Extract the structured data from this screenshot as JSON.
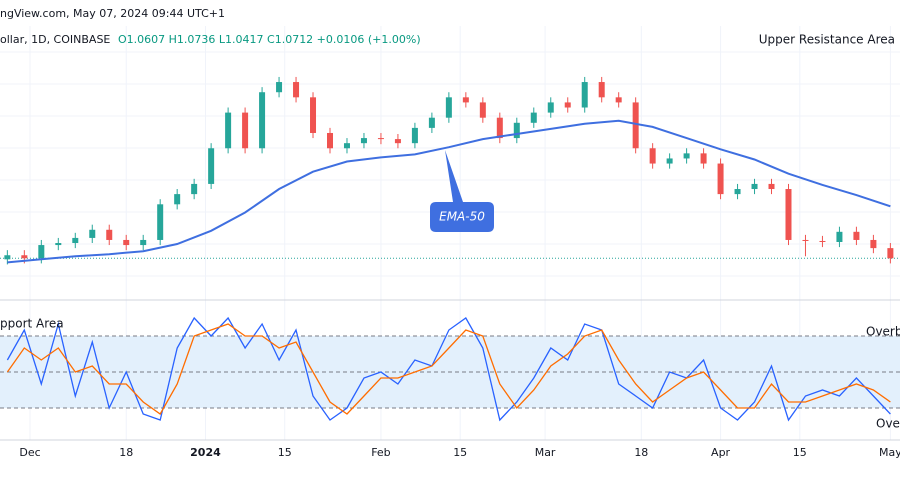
{
  "header": {
    "source": "ngView.com, May 07, 2024 09:44 UTC+1",
    "symbol": "ollar, 1D, COINBASE",
    "ohlc": "O1.0607 H1.0736 L1.0417 C1.0712 +0.0106 (+1.00%)"
  },
  "chart_data": [
    {
      "type": "candlestick",
      "x": [
        -4,
        -1,
        2,
        5,
        8,
        11,
        14,
        17,
        20,
        23,
        26,
        29,
        32,
        35,
        38,
        41,
        44,
        47,
        50,
        53,
        56,
        59,
        62,
        65,
        68,
        71,
        74,
        77,
        80,
        83,
        86,
        89,
        92,
        95,
        98,
        101,
        104,
        107,
        110,
        113,
        116,
        119,
        122,
        125,
        128,
        131,
        134,
        137,
        140,
        143,
        146,
        149,
        152
      ],
      "open": [
        1.0707,
        1.0727,
        1.0712,
        1.0777,
        1.0787,
        1.0812,
        1.0852,
        1.0802,
        1.0777,
        1.0802,
        1.0977,
        1.1027,
        1.1077,
        1.1252,
        1.1427,
        1.1252,
        1.1527,
        1.1577,
        1.1502,
        1.1327,
        1.1252,
        1.1277,
        1.1302,
        1.1297,
        1.1277,
        1.1352,
        1.1402,
        1.1502,
        1.1477,
        1.1402,
        1.1302,
        1.1377,
        1.1427,
        1.1477,
        1.1452,
        1.1577,
        1.1502,
        1.1477,
        1.1252,
        1.1177,
        1.1202,
        1.1227,
        1.1177,
        1.1027,
        1.1052,
        1.1077,
        1.1052,
        1.0802,
        1.0797,
        1.0792,
        1.0842,
        1.0802,
        1.0762
      ],
      "high": [
        1.0752,
        1.0752,
        1.0802,
        1.0812,
        1.0837,
        1.0877,
        1.0877,
        1.0827,
        1.0827,
        1.1002,
        1.1052,
        1.1102,
        1.1277,
        1.1452,
        1.1452,
        1.1552,
        1.1602,
        1.1602,
        1.1527,
        1.1352,
        1.1302,
        1.1327,
        1.1327,
        1.1322,
        1.1377,
        1.1427,
        1.1527,
        1.1527,
        1.1502,
        1.1427,
        1.1402,
        1.1452,
        1.1502,
        1.1502,
        1.1602,
        1.1602,
        1.1527,
        1.1502,
        1.1277,
        1.1227,
        1.1252,
        1.1252,
        1.1202,
        1.1077,
        1.1102,
        1.1102,
        1.1077,
        1.0827,
        1.0822,
        1.0867,
        1.0867,
        1.0827,
        1.0787
      ],
      "low": [
        1.0682,
        1.0687,
        1.0687,
        1.0752,
        1.0762,
        1.0787,
        1.0777,
        1.0752,
        1.0752,
        1.0777,
        1.0952,
        1.1002,
        1.1052,
        1.1227,
        1.1227,
        1.1227,
        1.1502,
        1.1477,
        1.1302,
        1.1227,
        1.1227,
        1.1252,
        1.1272,
        1.1252,
        1.1252,
        1.1327,
        1.1377,
        1.1452,
        1.1377,
        1.1277,
        1.1277,
        1.1352,
        1.1402,
        1.1427,
        1.1427,
        1.1477,
        1.1452,
        1.1227,
        1.1152,
        1.1152,
        1.1177,
        1.1152,
        1.1002,
        1.1002,
        1.1027,
        1.1027,
        1.0777,
        1.0722,
        1.0767,
        1.0767,
        1.0777,
        1.0737,
        1.0687
      ],
      "close": [
        1.0727,
        1.0712,
        1.0777,
        1.0787,
        1.0812,
        1.0852,
        1.0802,
        1.0777,
        1.0802,
        1.0977,
        1.1027,
        1.1077,
        1.1252,
        1.1427,
        1.1252,
        1.1527,
        1.1577,
        1.1502,
        1.1327,
        1.1252,
        1.1277,
        1.1302,
        1.1297,
        1.1277,
        1.1352,
        1.1402,
        1.1502,
        1.1477,
        1.1402,
        1.1302,
        1.1377,
        1.1427,
        1.1477,
        1.1452,
        1.1577,
        1.1502,
        1.1477,
        1.1252,
        1.1177,
        1.1202,
        1.1227,
        1.1177,
        1.1027,
        1.1052,
        1.1077,
        1.1052,
        1.0802,
        1.0797,
        1.0792,
        1.0842,
        1.0802,
        1.0762,
        1.0712
      ],
      "up_color": "#26a69a",
      "down_color": "#ef5350",
      "xlim": [
        -5.3,
        153.7
      ],
      "ylim": [
        1.0527,
        1.1852
      ],
      "xticks": [
        {
          "value": 0,
          "label": "Dec"
        },
        {
          "value": 17,
          "label": "18"
        },
        {
          "value": 31,
          "label": "2024"
        },
        {
          "value": 45,
          "label": "15"
        },
        {
          "value": 62,
          "label": "Feb"
        },
        {
          "value": 76,
          "label": "15"
        },
        {
          "value": 91,
          "label": "Mar"
        },
        {
          "value": 108,
          "label": "18"
        },
        {
          "value": 122,
          "label": "Apr"
        },
        {
          "value": 136,
          "label": "15"
        },
        {
          "value": 152,
          "label": "May"
        }
      ],
      "ema": {
        "name": "EMA-50",
        "color": "#3f6fe0",
        "x": [
          -4,
          2,
          8,
          14,
          20,
          26,
          32,
          38,
          44,
          50,
          56,
          62,
          68,
          74,
          80,
          86,
          92,
          98,
          104,
          110,
          116,
          122,
          128,
          134,
          140,
          146,
          152
        ],
        "values": [
          1.0692,
          1.0707,
          1.0722,
          1.0732,
          1.0747,
          1.0782,
          1.0847,
          1.0937,
          1.1052,
          1.1137,
          1.1187,
          1.1207,
          1.1222,
          1.1257,
          1.1297,
          1.1322,
          1.1347,
          1.1372,
          1.1387,
          1.1357,
          1.1302,
          1.1247,
          1.1197,
          1.1127,
          1.1072,
          1.1022,
          1.0967
        ]
      },
      "annotation": "Upper Resistance Area"
    },
    {
      "type": "line",
      "x": [
        -4,
        -1,
        2,
        5,
        8,
        11,
        14,
        17,
        20,
        23,
        26,
        29,
        32,
        35,
        38,
        41,
        44,
        47,
        50,
        53,
        56,
        59,
        62,
        65,
        68,
        71,
        74,
        77,
        80,
        83,
        86,
        89,
        92,
        95,
        98,
        101,
        104,
        107,
        110,
        113,
        116,
        119,
        122,
        125,
        128,
        131,
        134,
        137,
        140,
        143,
        146,
        149,
        152
      ],
      "xlim": [
        -5.3,
        153.7
      ],
      "ylim": [
        0,
        100
      ],
      "levels": [
        20,
        50,
        80
      ],
      "band_color": "#e3f0fc",
      "series": [
        {
          "color": "#2962ff",
          "values": [
            60,
            85,
            40,
            90,
            30,
            75,
            20,
            50,
            15,
            10,
            70,
            95,
            80,
            95,
            70,
            90,
            60,
            85,
            30,
            10,
            20,
            45,
            50,
            40,
            60,
            55,
            85,
            95,
            70,
            10,
            25,
            45,
            70,
            60,
            90,
            85,
            40,
            30,
            20,
            50,
            45,
            60,
            20,
            10,
            25,
            55,
            10,
            30,
            35,
            30,
            45,
            30,
            15
          ]
        },
        {
          "color": "#ff6d00",
          "values": [
            50,
            70,
            60,
            70,
            50,
            55,
            40,
            40,
            25,
            15,
            40,
            80,
            85,
            90,
            80,
            80,
            70,
            75,
            50,
            25,
            15,
            30,
            45,
            45,
            50,
            55,
            70,
            85,
            80,
            40,
            20,
            35,
            55,
            65,
            80,
            85,
            60,
            40,
            25,
            35,
            45,
            50,
            35,
            20,
            20,
            40,
            25,
            25,
            30,
            35,
            40,
            35,
            25
          ]
        }
      ],
      "annotations": [
        "pport Area",
        "Overb",
        "Ove"
      ]
    }
  ]
}
